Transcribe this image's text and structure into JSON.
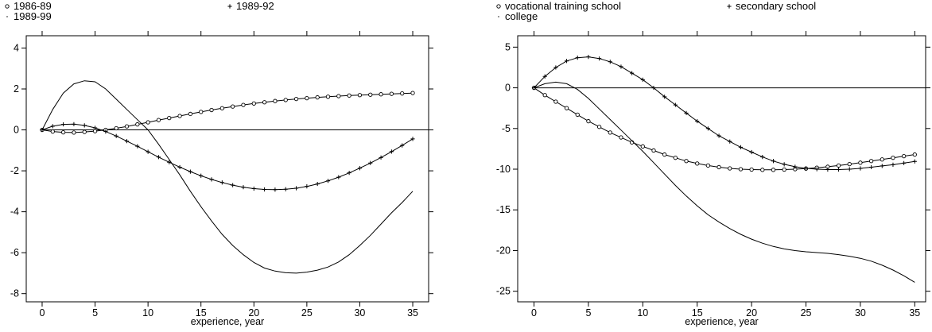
{
  "chart_data": [
    {
      "type": "line",
      "xlabel": "experience, year",
      "xlim": [
        -1.5,
        36.5
      ],
      "ylim": [
        -8.4,
        4.6
      ],
      "xticks": [
        0,
        5,
        10,
        15,
        20,
        25,
        30,
        35
      ],
      "yticks": [
        -8,
        -6,
        -4,
        -2,
        0,
        2,
        4
      ],
      "grid": false,
      "legend_position": "top-left",
      "series": [
        {
          "name": "1986-89",
          "marker": "circle",
          "x": [
            0,
            1,
            2,
            3,
            4,
            5,
            6,
            7,
            8,
            9,
            10,
            11,
            12,
            13,
            14,
            15,
            16,
            17,
            18,
            19,
            20,
            21,
            22,
            23,
            24,
            25,
            26,
            27,
            28,
            29,
            30,
            31,
            32,
            33,
            34,
            35
          ],
          "y": [
            0,
            -0.08,
            -0.12,
            -0.13,
            -0.1,
            -0.06,
            0.0,
            0.08,
            0.17,
            0.27,
            0.37,
            0.48,
            0.58,
            0.68,
            0.78,
            0.88,
            0.97,
            1.06,
            1.14,
            1.22,
            1.29,
            1.35,
            1.41,
            1.46,
            1.51,
            1.55,
            1.59,
            1.62,
            1.65,
            1.68,
            1.7,
            1.72,
            1.74,
            1.76,
            1.78,
            1.8
          ]
        },
        {
          "name": "1989-92",
          "marker": "plus",
          "x": [
            0,
            1,
            2,
            3,
            4,
            5,
            6,
            7,
            8,
            9,
            10,
            11,
            12,
            13,
            14,
            15,
            16,
            17,
            18,
            19,
            20,
            21,
            22,
            23,
            24,
            25,
            26,
            27,
            28,
            29,
            30,
            31,
            32,
            33,
            34,
            35
          ],
          "y": [
            0,
            0.18,
            0.27,
            0.28,
            0.22,
            0.1,
            -0.08,
            -0.3,
            -0.55,
            -0.8,
            -1.07,
            -1.33,
            -1.58,
            -1.82,
            -2.04,
            -2.24,
            -2.42,
            -2.57,
            -2.7,
            -2.8,
            -2.87,
            -2.91,
            -2.92,
            -2.9,
            -2.85,
            -2.76,
            -2.64,
            -2.49,
            -2.31,
            -2.1,
            -1.87,
            -1.62,
            -1.35,
            -1.06,
            -0.76,
            -0.44
          ]
        },
        {
          "name": "1989-99",
          "marker": "none",
          "x": [
            0,
            1,
            2,
            3,
            4,
            5,
            6,
            7,
            8,
            9,
            10,
            11,
            12,
            13,
            14,
            15,
            16,
            17,
            18,
            19,
            20,
            21,
            22,
            23,
            24,
            25,
            26,
            27,
            28,
            29,
            30,
            31,
            32,
            33,
            34,
            35
          ],
          "y": [
            0,
            1.0,
            1.8,
            2.25,
            2.4,
            2.35,
            2.0,
            1.5,
            1.0,
            0.5,
            0.0,
            -0.7,
            -1.45,
            -2.2,
            -3.0,
            -3.75,
            -4.45,
            -5.1,
            -5.65,
            -6.1,
            -6.48,
            -6.75,
            -6.9,
            -6.98,
            -7.0,
            -6.95,
            -6.85,
            -6.7,
            -6.45,
            -6.1,
            -5.65,
            -5.15,
            -4.6,
            -4.05,
            -3.55,
            -3.0
          ]
        }
      ]
    },
    {
      "type": "line",
      "xlabel": "experience, year",
      "xlim": [
        -1.5,
        36.0
      ],
      "ylim": [
        -26.3,
        6.4
      ],
      "xticks": [
        0,
        5,
        10,
        15,
        20,
        25,
        30,
        35
      ],
      "yticks": [
        -25,
        -20,
        -15,
        -10,
        -5,
        0,
        5
      ],
      "grid": false,
      "legend_position": "top-left",
      "series": [
        {
          "name": "vocational training school",
          "marker": "circle",
          "x": [
            0,
            1,
            2,
            3,
            4,
            5,
            6,
            7,
            8,
            9,
            10,
            11,
            12,
            13,
            14,
            15,
            16,
            17,
            18,
            19,
            20,
            21,
            22,
            23,
            24,
            25,
            26,
            27,
            28,
            29,
            30,
            31,
            32,
            33,
            34,
            35
          ],
          "y": [
            0,
            -0.9,
            -1.7,
            -2.5,
            -3.3,
            -4.1,
            -4.8,
            -5.5,
            -6.1,
            -6.7,
            -7.2,
            -7.7,
            -8.2,
            -8.6,
            -9.0,
            -9.3,
            -9.55,
            -9.75,
            -9.9,
            -10.0,
            -10.05,
            -10.08,
            -10.08,
            -10.05,
            -10.0,
            -9.92,
            -9.82,
            -9.7,
            -9.55,
            -9.38,
            -9.2,
            -9.0,
            -8.8,
            -8.6,
            -8.4,
            -8.2
          ]
        },
        {
          "name": "secondary school",
          "marker": "plus",
          "x": [
            0,
            1,
            2,
            3,
            4,
            5,
            6,
            7,
            8,
            9,
            10,
            11,
            12,
            13,
            14,
            15,
            16,
            17,
            18,
            19,
            20,
            21,
            22,
            23,
            24,
            25,
            26,
            27,
            28,
            29,
            30,
            31,
            32,
            33,
            34,
            35
          ],
          "y": [
            0,
            1.4,
            2.5,
            3.3,
            3.7,
            3.8,
            3.6,
            3.2,
            2.6,
            1.8,
            1.0,
            0.0,
            -1.1,
            -2.1,
            -3.1,
            -4.1,
            -5.0,
            -5.9,
            -6.6,
            -7.3,
            -7.9,
            -8.5,
            -9.0,
            -9.4,
            -9.7,
            -9.9,
            -10.0,
            -10.05,
            -10.05,
            -10.0,
            -9.9,
            -9.75,
            -9.6,
            -9.45,
            -9.25,
            -9.05
          ]
        },
        {
          "name": "college",
          "marker": "none",
          "x": [
            0,
            1,
            2,
            3,
            4,
            5,
            6,
            7,
            8,
            9,
            10,
            11,
            12,
            13,
            14,
            15,
            16,
            17,
            18,
            19,
            20,
            21,
            22,
            23,
            24,
            25,
            26,
            27,
            28,
            29,
            30,
            31,
            32,
            33,
            34,
            35
          ],
          "y": [
            0,
            0.5,
            0.7,
            0.5,
            -0.2,
            -1.3,
            -2.6,
            -3.9,
            -5.2,
            -6.5,
            -7.8,
            -9.2,
            -10.6,
            -12.0,
            -13.3,
            -14.5,
            -15.6,
            -16.5,
            -17.3,
            -18.0,
            -18.6,
            -19.1,
            -19.5,
            -19.8,
            -20.0,
            -20.15,
            -20.25,
            -20.35,
            -20.5,
            -20.7,
            -20.95,
            -21.3,
            -21.8,
            -22.4,
            -23.1,
            -23.9
          ]
        }
      ]
    }
  ]
}
